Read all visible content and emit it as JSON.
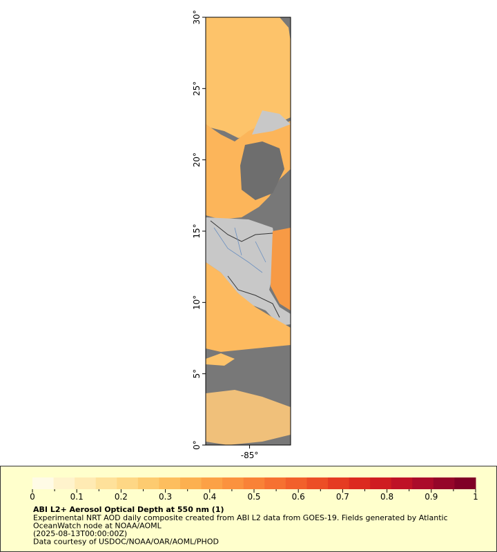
{
  "map": {
    "lat_lim": [
      0,
      30
    ],
    "lon_lim": [
      -88.1,
      -82.1
    ],
    "lat_ticks": [
      {
        "value": 0,
        "label": "0°"
      },
      {
        "value": 5,
        "label": "5°"
      },
      {
        "value": 10,
        "label": "10°"
      },
      {
        "value": 15,
        "label": "15°"
      },
      {
        "value": 20,
        "label": "20°"
      },
      {
        "value": 25,
        "label": "25°"
      },
      {
        "value": 30,
        "label": "30°"
      }
    ],
    "lon_ticks": [
      {
        "value": -85,
        "label": "-85°"
      }
    ]
  },
  "colorbar": {
    "lim": [
      0,
      1
    ],
    "ticks": [
      0,
      0.1,
      0.2,
      0.3,
      0.4,
      0.5,
      0.6,
      0.7,
      0.8,
      0.9,
      1
    ],
    "minor_ticks": [
      0.05,
      0.15,
      0.25,
      0.35,
      0.45,
      0.55,
      0.65,
      0.75,
      0.85,
      0.95
    ],
    "colors": [
      "#fffbe6",
      "#fff3cc",
      "#ffeab3",
      "#fee19a",
      "#fed785",
      "#fdcb70",
      "#fdbe5e",
      "#fcb050",
      "#fca146",
      "#fb923e",
      "#f98237",
      "#f67131",
      "#f2602b",
      "#ec4e26",
      "#e53b22",
      "#dc2a20",
      "#cf1c21",
      "#bf1226",
      "#ab0b2a",
      "#950629",
      "#800026"
    ]
  },
  "caption": {
    "title": "ABI L2+ Aerosol Optical Depth at 550 nm (1)",
    "lines": [
      "Experimental NRT AOD daily composite created from ABI L2 data from GOES-19. Fields generated by Atlantic",
      "OceanWatch node at NOAA/AOML",
      "(2025-08-13T00:00:00Z)",
      "Data courtesy of USDOC/NOAA/OAR/AOML/PHOD"
    ]
  }
}
